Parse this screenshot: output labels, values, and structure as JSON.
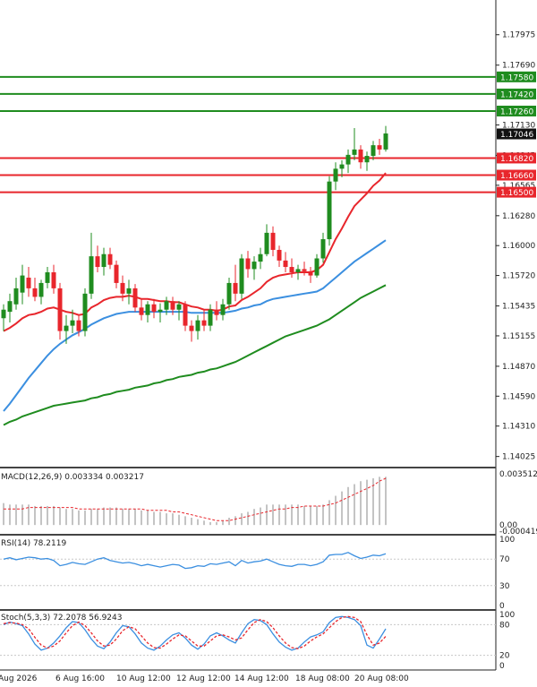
{
  "chart_data": [
    {
      "type": "candlestick",
      "role": "price",
      "price_ticks": [
        "1.17975",
        "1.17690",
        "1.17130",
        "1.16845",
        "1.16565",
        "1.16280",
        "1.16000",
        "1.15720",
        "1.15435",
        "1.15155",
        "1.14870",
        "1.14590",
        "1.14310",
        "1.14025"
      ],
      "last_price": "1.17046",
      "ylim": [
        1.13955,
        1.183
      ],
      "resistance_levels": [
        {
          "label": "1.17580",
          "value": 1.1758
        },
        {
          "label": "1.17420",
          "value": 1.1742
        },
        {
          "label": "1.17260",
          "value": 1.1726
        }
      ],
      "support_levels": [
        {
          "label": "1.16820",
          "value": 1.1682
        },
        {
          "label": "1.16660",
          "value": 1.1666
        },
        {
          "label": "1.16500",
          "value": 1.165
        }
      ],
      "x_tick_labels": [
        "Aug 2026",
        "6 Aug 16:00",
        "10 Aug 12:00",
        "12 Aug 12:00",
        "14 Aug 12:00",
        "18 Aug 08:00",
        "20 Aug 08:00"
      ],
      "candles": [
        {
          "o": 1.1532,
          "h": 1.1545,
          "l": 1.152,
          "c": 1.154
        },
        {
          "o": 1.1538,
          "h": 1.1555,
          "l": 1.1528,
          "c": 1.1548
        },
        {
          "o": 1.1545,
          "h": 1.157,
          "l": 1.154,
          "c": 1.156
        },
        {
          "o": 1.1556,
          "h": 1.1582,
          "l": 1.1545,
          "c": 1.1572
        },
        {
          "o": 1.157,
          "h": 1.158,
          "l": 1.1552,
          "c": 1.156
        },
        {
          "o": 1.156,
          "h": 1.157,
          "l": 1.1548,
          "c": 1.1552
        },
        {
          "o": 1.1552,
          "h": 1.1568,
          "l": 1.1545,
          "c": 1.1565
        },
        {
          "o": 1.1565,
          "h": 1.158,
          "l": 1.156,
          "c": 1.1575
        },
        {
          "o": 1.1575,
          "h": 1.1582,
          "l": 1.1555,
          "c": 1.156
        },
        {
          "o": 1.156,
          "h": 1.1565,
          "l": 1.1512,
          "c": 1.152
        },
        {
          "o": 1.152,
          "h": 1.1535,
          "l": 1.1508,
          "c": 1.1525
        },
        {
          "o": 1.1525,
          "h": 1.154,
          "l": 1.1518,
          "c": 1.153
        },
        {
          "o": 1.153,
          "h": 1.1535,
          "l": 1.1515,
          "c": 1.152
        },
        {
          "o": 1.152,
          "h": 1.156,
          "l": 1.1515,
          "c": 1.1555
        },
        {
          "o": 1.1555,
          "h": 1.1612,
          "l": 1.155,
          "c": 1.159
        },
        {
          "o": 1.159,
          "h": 1.16,
          "l": 1.1575,
          "c": 1.158
        },
        {
          "o": 1.158,
          "h": 1.1598,
          "l": 1.1572,
          "c": 1.1592
        },
        {
          "o": 1.1592,
          "h": 1.1598,
          "l": 1.1578,
          "c": 1.1582
        },
        {
          "o": 1.1582,
          "h": 1.1586,
          "l": 1.156,
          "c": 1.1565
        },
        {
          "o": 1.1565,
          "h": 1.1572,
          "l": 1.1548,
          "c": 1.1555
        },
        {
          "o": 1.1555,
          "h": 1.1568,
          "l": 1.1545,
          "c": 1.156
        },
        {
          "o": 1.156,
          "h": 1.1564,
          "l": 1.1538,
          "c": 1.1542
        },
        {
          "o": 1.1542,
          "h": 1.155,
          "l": 1.153,
          "c": 1.1535
        },
        {
          "o": 1.1535,
          "h": 1.1548,
          "l": 1.1528,
          "c": 1.1545
        },
        {
          "o": 1.1545,
          "h": 1.155,
          "l": 1.1532,
          "c": 1.1538
        },
        {
          "o": 1.1538,
          "h": 1.1546,
          "l": 1.1528,
          "c": 1.154
        },
        {
          "o": 1.154,
          "h": 1.1552,
          "l": 1.1535,
          "c": 1.1548
        },
        {
          "o": 1.1548,
          "h": 1.1552,
          "l": 1.1535,
          "c": 1.154
        },
        {
          "o": 1.154,
          "h": 1.1548,
          "l": 1.153,
          "c": 1.1545
        },
        {
          "o": 1.1545,
          "h": 1.1548,
          "l": 1.152,
          "c": 1.1525
        },
        {
          "o": 1.1525,
          "h": 1.153,
          "l": 1.151,
          "c": 1.152
        },
        {
          "o": 1.152,
          "h": 1.1535,
          "l": 1.1512,
          "c": 1.153
        },
        {
          "o": 1.153,
          "h": 1.154,
          "l": 1.152,
          "c": 1.1525
        },
        {
          "o": 1.1525,
          "h": 1.1545,
          "l": 1.152,
          "c": 1.154
        },
        {
          "o": 1.154,
          "h": 1.1548,
          "l": 1.153,
          "c": 1.1535
        },
        {
          "o": 1.1535,
          "h": 1.155,
          "l": 1.153,
          "c": 1.1545
        },
        {
          "o": 1.1545,
          "h": 1.157,
          "l": 1.154,
          "c": 1.1565
        },
        {
          "o": 1.1565,
          "h": 1.1582,
          "l": 1.1548,
          "c": 1.1555
        },
        {
          "o": 1.1555,
          "h": 1.1592,
          "l": 1.155,
          "c": 1.1588
        },
        {
          "o": 1.1588,
          "h": 1.1595,
          "l": 1.157,
          "c": 1.1578
        },
        {
          "o": 1.1578,
          "h": 1.159,
          "l": 1.1568,
          "c": 1.1585
        },
        {
          "o": 1.1585,
          "h": 1.1598,
          "l": 1.1578,
          "c": 1.1592
        },
        {
          "o": 1.1592,
          "h": 1.162,
          "l": 1.159,
          "c": 1.1612
        },
        {
          "o": 1.1612,
          "h": 1.1618,
          "l": 1.159,
          "c": 1.1596
        },
        {
          "o": 1.1596,
          "h": 1.16,
          "l": 1.158,
          "c": 1.1586
        },
        {
          "o": 1.1586,
          "h": 1.1594,
          "l": 1.1575,
          "c": 1.158
        },
        {
          "o": 1.158,
          "h": 1.1588,
          "l": 1.157,
          "c": 1.1575
        },
        {
          "o": 1.1575,
          "h": 1.1582,
          "l": 1.1568,
          "c": 1.1578
        },
        {
          "o": 1.1578,
          "h": 1.1585,
          "l": 1.1572,
          "c": 1.1576
        },
        {
          "o": 1.1576,
          "h": 1.158,
          "l": 1.1565,
          "c": 1.1572
        },
        {
          "o": 1.1572,
          "h": 1.1592,
          "l": 1.157,
          "c": 1.1588
        },
        {
          "o": 1.1588,
          "h": 1.1612,
          "l": 1.1584,
          "c": 1.1606
        },
        {
          "o": 1.1606,
          "h": 1.1665,
          "l": 1.16,
          "c": 1.166
        },
        {
          "o": 1.166,
          "h": 1.1678,
          "l": 1.1652,
          "c": 1.1672
        },
        {
          "o": 1.1672,
          "h": 1.168,
          "l": 1.1664,
          "c": 1.1676
        },
        {
          "o": 1.1676,
          "h": 1.169,
          "l": 1.1668,
          "c": 1.1685
        },
        {
          "o": 1.1685,
          "h": 1.171,
          "l": 1.168,
          "c": 1.169
        },
        {
          "o": 1.169,
          "h": 1.1694,
          "l": 1.1672,
          "c": 1.1678
        },
        {
          "o": 1.1678,
          "h": 1.1688,
          "l": 1.167,
          "c": 1.1684
        },
        {
          "o": 1.1684,
          "h": 1.1698,
          "l": 1.168,
          "c": 1.1694
        },
        {
          "o": 1.1694,
          "h": 1.17,
          "l": 1.1685,
          "c": 1.169
        },
        {
          "o": 1.169,
          "h": 1.1712,
          "l": 1.1688,
          "c": 1.1705
        }
      ],
      "series": [
        {
          "color": "#e8262c",
          "values": [
            1.152,
            1.1523,
            1.1527,
            1.1532,
            1.1535,
            1.1536,
            1.1538,
            1.1541,
            1.1542,
            1.154,
            1.1538,
            1.1537,
            1.1535,
            1.1536,
            1.1542,
            1.1545,
            1.1549,
            1.1551,
            1.1552,
            1.1552,
            1.1553,
            1.1552,
            1.155,
            1.155,
            1.1549,
            1.1548,
            1.1548,
            1.1547,
            1.1547,
            1.1545,
            1.1543,
            1.1542,
            1.154,
            1.154,
            1.1539,
            1.154,
            1.1543,
            1.1544,
            1.1549,
            1.1552,
            1.1556,
            1.156,
            1.1566,
            1.157,
            1.1572,
            1.1573,
            1.1574,
            1.1575,
            1.1575,
            1.1575,
            1.1577,
            1.1582,
            1.1594,
            1.1606,
            1.1616,
            1.1627,
            1.1637,
            1.1643,
            1.1649,
            1.1656,
            1.1661,
            1.1668
          ]
        },
        {
          "color": "#3b8fe0",
          "values": [
            1.1445,
            1.1452,
            1.146,
            1.1468,
            1.1476,
            1.1483,
            1.149,
            1.1497,
            1.1503,
            1.1508,
            1.1512,
            1.1516,
            1.1519,
            1.1522,
            1.1526,
            1.1529,
            1.1532,
            1.1534,
            1.1536,
            1.1537,
            1.1538,
            1.1538,
            1.1538,
            1.1538,
            1.1538,
            1.1538,
            1.1538,
            1.1538,
            1.1538,
            1.1538,
            1.1537,
            1.1537,
            1.1537,
            1.1537,
            1.1537,
            1.1537,
            1.1538,
            1.1539,
            1.1541,
            1.1542,
            1.1544,
            1.1545,
            1.1548,
            1.155,
            1.1551,
            1.1552,
            1.1553,
            1.1554,
            1.1555,
            1.1556,
            1.1557,
            1.156,
            1.1565,
            1.157,
            1.1575,
            1.158,
            1.1585,
            1.1589,
            1.1593,
            1.1597,
            1.1601,
            1.1605
          ]
        },
        {
          "color": "#1f8c1f",
          "values": [
            1.1432,
            1.1435,
            1.1437,
            1.144,
            1.1442,
            1.1444,
            1.1446,
            1.1448,
            1.145,
            1.1451,
            1.1452,
            1.1453,
            1.1454,
            1.1455,
            1.1457,
            1.1458,
            1.146,
            1.1461,
            1.1463,
            1.1464,
            1.1465,
            1.1467,
            1.1468,
            1.1469,
            1.1471,
            1.1472,
            1.1474,
            1.1475,
            1.1477,
            1.1478,
            1.1479,
            1.1481,
            1.1482,
            1.1484,
            1.1485,
            1.1487,
            1.1489,
            1.1491,
            1.1494,
            1.1497,
            1.15,
            1.1503,
            1.1506,
            1.1509,
            1.1512,
            1.1515,
            1.1517,
            1.1519,
            1.1521,
            1.1523,
            1.1525,
            1.1528,
            1.1531,
            1.1535,
            1.1539,
            1.1543,
            1.1547,
            1.1551,
            1.1554,
            1.1557,
            1.156,
            1.1563
          ]
        }
      ]
    },
    {
      "type": "bar",
      "role": "macd",
      "label": "MACD(12,26,9) 0.003334 0.003217",
      "ylim": [
        -0.00042,
        0.00375
      ],
      "tick_labels": [
        "0.003512",
        "0.00",
        "-0.000419"
      ],
      "histogram": [
        0.0015,
        0.0014,
        0.0014,
        0.0014,
        0.0014,
        0.0013,
        0.0013,
        0.0013,
        0.0013,
        0.0012,
        0.0011,
        0.0011,
        0.001,
        0.001,
        0.0011,
        0.0011,
        0.0012,
        0.0012,
        0.0012,
        0.0011,
        0.0011,
        0.0011,
        0.001,
        0.001,
        0.0009,
        0.0009,
        0.0008,
        0.0008,
        0.0007,
        0.0006,
        0.0005,
        0.0004,
        0.0003,
        0.0002,
        0.0002,
        0.0003,
        0.0005,
        0.0006,
        0.0008,
        0.0009,
        0.0011,
        0.0012,
        0.0014,
        0.0014,
        0.0014,
        0.0014,
        0.0014,
        0.0014,
        0.0013,
        0.0013,
        0.0013,
        0.0014,
        0.0017,
        0.002,
        0.0023,
        0.0026,
        0.0028,
        0.003,
        0.0031,
        0.0032,
        0.0033,
        0.0033
      ],
      "signal": [
        0.0011,
        0.0011,
        0.0011,
        0.0011,
        0.0012,
        0.0012,
        0.0012,
        0.0012,
        0.0012,
        0.0012,
        0.0012,
        0.0012,
        0.0011,
        0.0011,
        0.0011,
        0.0011,
        0.0011,
        0.0011,
        0.0011,
        0.0011,
        0.0011,
        0.0011,
        0.0011,
        0.001,
        0.001,
        0.001,
        0.001,
        0.0009,
        0.0009,
        0.0008,
        0.0007,
        0.0006,
        0.0005,
        0.0004,
        0.0003,
        0.0003,
        0.0003,
        0.0004,
        0.0005,
        0.0006,
        0.0007,
        0.0008,
        0.0009,
        0.001,
        0.0011,
        0.0011,
        0.0012,
        0.0012,
        0.0013,
        0.0013,
        0.0013,
        0.0013,
        0.0014,
        0.0015,
        0.0017,
        0.0019,
        0.0021,
        0.0023,
        0.0025,
        0.0027,
        0.003,
        0.0032
      ]
    },
    {
      "type": "line",
      "role": "rsi",
      "label": "RSI(14) 78.2119",
      "ylim": [
        0,
        100
      ],
      "tick_labels": [
        "100",
        "70",
        "30",
        "0"
      ],
      "levels": [
        70,
        30
      ],
      "values": [
        70,
        72,
        69,
        71,
        73,
        72,
        70,
        71,
        68,
        60,
        62,
        65,
        63,
        62,
        66,
        70,
        72,
        68,
        66,
        64,
        65,
        63,
        60,
        62,
        60,
        58,
        60,
        62,
        61,
        56,
        57,
        60,
        59,
        63,
        62,
        64,
        66,
        60,
        68,
        64,
        66,
        67,
        70,
        66,
        62,
        60,
        59,
        62,
        62,
        60,
        62,
        66,
        76,
        77,
        77,
        80,
        75,
        71,
        73,
        76,
        75,
        78
      ]
    },
    {
      "type": "line",
      "role": "stochastic",
      "label": "Stoch(5,3,3) 72.2078 56.9243",
      "ylim": [
        0,
        100
      ],
      "tick_labels": [
        "100",
        "80",
        "20",
        "0"
      ],
      "levels": [
        80,
        20
      ],
      "series": [
        {
          "name": "main",
          "color": "#3b8fe0",
          "values": [
            80,
            85,
            82,
            78,
            62,
            42,
            30,
            34,
            44,
            58,
            74,
            86,
            84,
            70,
            52,
            38,
            33,
            46,
            64,
            78,
            76,
            62,
            44,
            34,
            30,
            38,
            50,
            60,
            64,
            54,
            40,
            32,
            42,
            58,
            64,
            58,
            50,
            44,
            64,
            82,
            90,
            88,
            80,
            62,
            46,
            36,
            30,
            34,
            46,
            56,
            60,
            66,
            84,
            94,
            96,
            94,
            90,
            78,
            40,
            34,
            52,
            72
          ]
        },
        {
          "name": "signal",
          "color": "#e8262c",
          "values": [
            82,
            84,
            83,
            80,
            72,
            55,
            40,
            34,
            38,
            48,
            64,
            78,
            85,
            78,
            64,
            48,
            38,
            40,
            52,
            68,
            76,
            72,
            58,
            44,
            35,
            34,
            42,
            52,
            60,
            58,
            48,
            38,
            38,
            48,
            58,
            60,
            56,
            50,
            54,
            70,
            84,
            90,
            86,
            74,
            58,
            44,
            35,
            33,
            38,
            48,
            56,
            62,
            74,
            86,
            94,
            96,
            94,
            86,
            60,
            40,
            44,
            57
          ]
        }
      ]
    }
  ]
}
